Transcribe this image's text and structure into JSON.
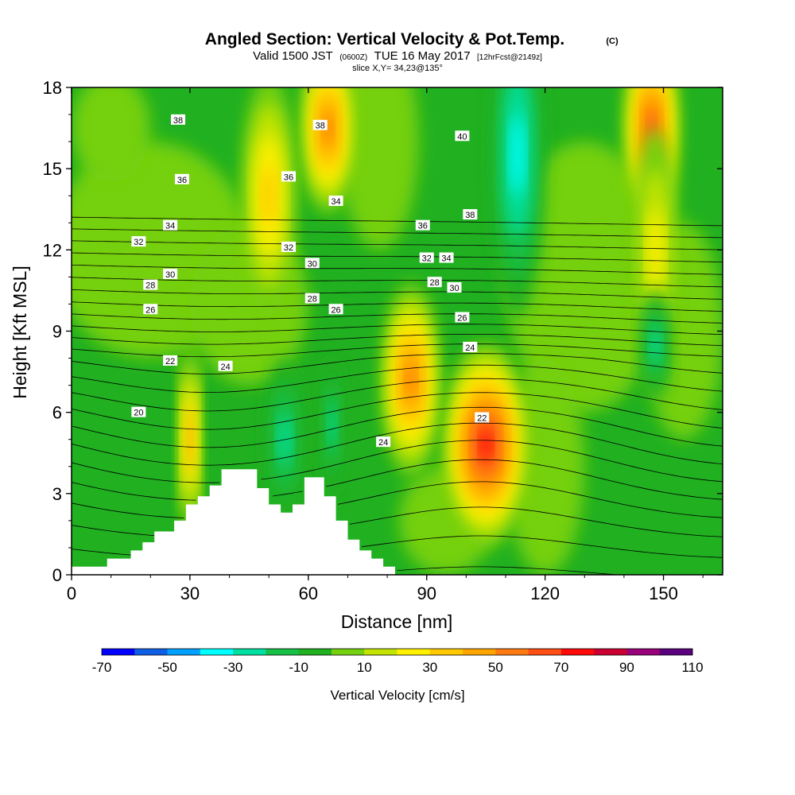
{
  "chart_data": {
    "type": "heatmap",
    "title": "Angled Section: Vertical Velocity & Pot.Temp.",
    "title_mark": "(C)",
    "subtitle": {
      "valid": "Valid 1500 JST",
      "utc": "(0600Z)",
      "date": "TUE 16 May 2017",
      "forecast": "[12hrFcst@2149z]"
    },
    "slice_label": "slice X,Y= 34,23@135°",
    "xlabel": "Distance [nm]",
    "ylabel": "Height [Kft MSL]",
    "xlim": [
      0,
      165
    ],
    "ylim": [
      0,
      18
    ],
    "x_ticks": [
      "0",
      "30",
      "60",
      "90",
      "120",
      "150"
    ],
    "y_ticks": [
      "0",
      "3",
      "6",
      "9",
      "12",
      "15",
      "18"
    ],
    "colorbar": {
      "title": "Vertical Velocity [cm/s]",
      "tick_labels": [
        "-70",
        "-50",
        "-30",
        "-10",
        "10",
        "30",
        "50",
        "70",
        "90",
        "110"
      ],
      "levels": [
        -70,
        -60,
        -50,
        -40,
        -30,
        -20,
        -10,
        0,
        10,
        20,
        30,
        40,
        50,
        60,
        70,
        80,
        90,
        100,
        110
      ],
      "colors": [
        "#0000ff",
        "#0f5fe6",
        "#00a0ff",
        "#00ffff",
        "#00e0a0",
        "#16c047",
        "#20b020",
        "#75d010",
        "#c3e400",
        "#fff000",
        "#ffc800",
        "#ffa500",
        "#ff7a10",
        "#ff4e15",
        "#ff0a0a",
        "#cc0030",
        "#98007a",
        "#5a007e"
      ]
    },
    "colors": {
      "background_field": "#20b020",
      "contour_line": "#000000",
      "terrain": "#ffffff"
    },
    "updrafts": [
      {
        "x": 105,
        "y": 4.8,
        "rx": 11,
        "ry": 3.8,
        "peak": 78
      },
      {
        "x": 86,
        "y": 7.2,
        "rx": 7.5,
        "ry": 3.6,
        "peak": 52
      },
      {
        "x": 65,
        "y": 16.5,
        "rx": 7,
        "ry": 3.2,
        "peak": 52
      },
      {
        "x": 147,
        "y": 16.5,
        "rx": 7,
        "ry": 3.5,
        "peak": 60
      },
      {
        "x": 50,
        "y": 14,
        "rx": 7,
        "ry": 4.5,
        "peak": 36
      },
      {
        "x": 30,
        "y": 5,
        "rx": 3,
        "ry": 3.5,
        "peak": 48
      },
      {
        "x": 148,
        "y": 12,
        "rx": 6,
        "ry": 4.5,
        "peak": 28
      }
    ],
    "downdrafts": [
      {
        "x": 113,
        "y": 15.5,
        "rx": 7,
        "ry": 6,
        "peak": -38
      },
      {
        "x": 54,
        "y": 5,
        "rx": 5,
        "ry": 3,
        "peak": -24
      },
      {
        "x": 66,
        "y": 5.5,
        "rx": 3,
        "ry": 2.5,
        "peak": -26
      },
      {
        "x": 148,
        "y": 8.5,
        "rx": 4,
        "ry": 2,
        "peak": -26
      }
    ],
    "theta_isentropes": {
      "levels": [
        18,
        19,
        20,
        21,
        22,
        23,
        24,
        25,
        26,
        27,
        28,
        29,
        30,
        31,
        32,
        33,
        34,
        35,
        36,
        37,
        38,
        39,
        40,
        41
      ],
      "labels": [
        {
          "text": "38",
          "x": 27,
          "y": 16.8
        },
        {
          "text": "36",
          "x": 28,
          "y": 14.6
        },
        {
          "text": "34",
          "x": 25,
          "y": 12.9
        },
        {
          "text": "32",
          "x": 17,
          "y": 12.3
        },
        {
          "text": "30",
          "x": 25,
          "y": 11.1
        },
        {
          "text": "28",
          "x": 20,
          "y": 10.7
        },
        {
          "text": "26",
          "x": 20,
          "y": 9.8
        },
        {
          "text": "22",
          "x": 25,
          "y": 7.9
        },
        {
          "text": "24",
          "x": 39,
          "y": 7.7
        },
        {
          "text": "20",
          "x": 17,
          "y": 6.0
        },
        {
          "text": "38",
          "x": 63,
          "y": 16.6
        },
        {
          "text": "36",
          "x": 55,
          "y": 14.7
        },
        {
          "text": "34",
          "x": 67,
          "y": 13.8
        },
        {
          "text": "32",
          "x": 55,
          "y": 12.1
        },
        {
          "text": "30",
          "x": 61,
          "y": 11.5
        },
        {
          "text": "28",
          "x": 61,
          "y": 10.2
        },
        {
          "text": "26",
          "x": 67,
          "y": 9.8
        },
        {
          "text": "24",
          "x": 79,
          "y": 4.9
        },
        {
          "text": "40",
          "x": 99,
          "y": 16.2
        },
        {
          "text": "38",
          "x": 101,
          "y": 13.3
        },
        {
          "text": "36",
          "x": 89,
          "y": 12.9
        },
        {
          "text": "34",
          "x": 95,
          "y": 11.7
        },
        {
          "text": "32",
          "x": 90,
          "y": 11.7
        },
        {
          "text": "28",
          "x": 92,
          "y": 10.8
        },
        {
          "text": "30",
          "x": 97,
          "y": 10.6
        },
        {
          "text": "26",
          "x": 99,
          "y": 9.5
        },
        {
          "text": "24",
          "x": 101,
          "y": 8.4
        },
        {
          "text": "22",
          "x": 104,
          "y": 5.8
        }
      ]
    },
    "terrain_profile": [
      [
        0,
        0.3
      ],
      [
        9,
        0.3
      ],
      [
        9,
        0.6
      ],
      [
        15,
        0.6
      ],
      [
        15,
        0.9
      ],
      [
        18,
        0.9
      ],
      [
        18,
        1.2
      ],
      [
        21,
        1.2
      ],
      [
        21,
        1.6
      ],
      [
        26,
        1.6
      ],
      [
        26,
        2
      ],
      [
        29,
        2
      ],
      [
        29,
        2.6
      ],
      [
        32,
        2.6
      ],
      [
        32,
        2.9
      ],
      [
        35,
        2.9
      ],
      [
        35,
        3.3
      ],
      [
        38,
        3.3
      ],
      [
        38,
        3.9
      ],
      [
        47,
        3.9
      ],
      [
        47,
        3.2
      ],
      [
        50,
        3.2
      ],
      [
        50,
        2.6
      ],
      [
        53,
        2.6
      ],
      [
        53,
        2.3
      ],
      [
        56,
        2.3
      ],
      [
        56,
        2.6
      ],
      [
        59,
        2.6
      ],
      [
        59,
        3.6
      ],
      [
        64,
        3.6
      ],
      [
        64,
        2.9
      ],
      [
        67,
        2.9
      ],
      [
        67,
        2
      ],
      [
        70,
        2
      ],
      [
        70,
        1.3
      ],
      [
        73,
        1.3
      ],
      [
        73,
        0.9
      ],
      [
        76,
        0.9
      ],
      [
        76,
        0.6
      ],
      [
        79,
        0.6
      ],
      [
        79,
        0.3
      ],
      [
        82,
        0.3
      ],
      [
        82,
        0
      ],
      [
        165,
        0
      ]
    ]
  }
}
